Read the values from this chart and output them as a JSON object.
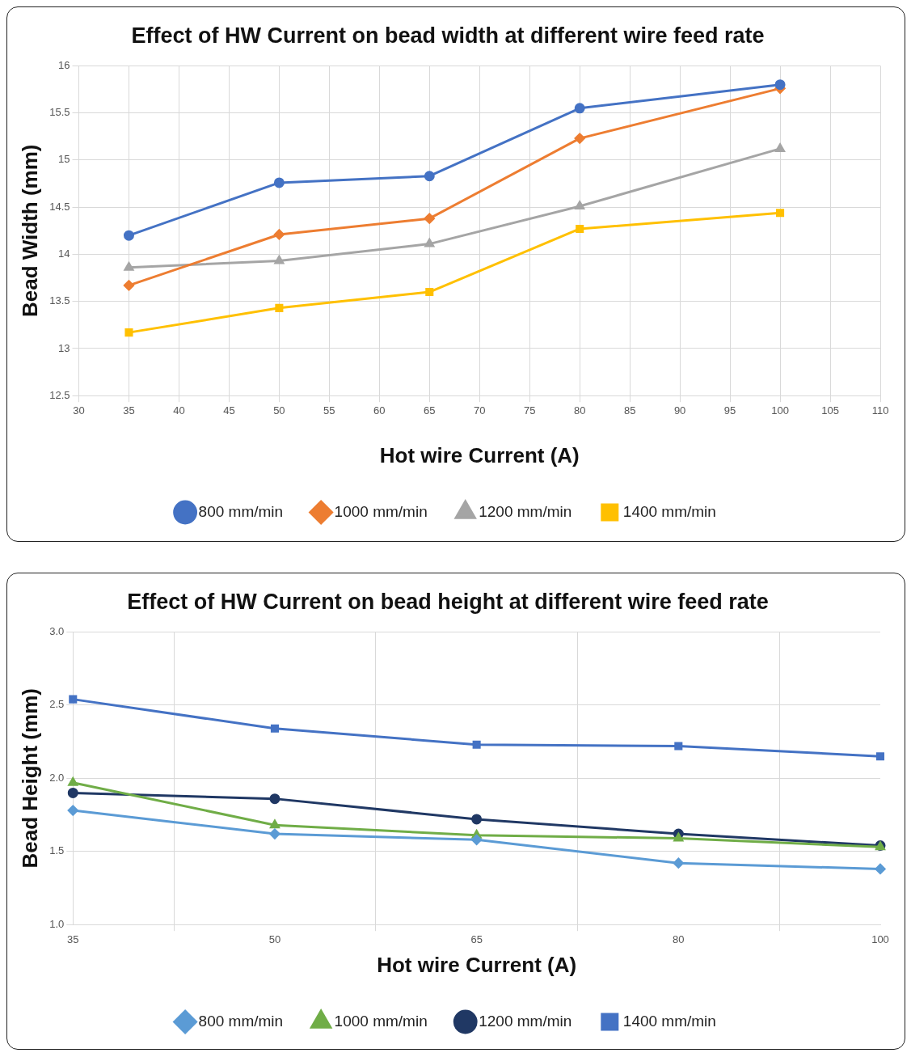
{
  "chart_data": [
    {
      "type": "line",
      "title": "Effect of HW Current on bead width at different wire feed rate",
      "xlabel": "Hot wire Current (A)",
      "ylabel": "Bead Width (mm)",
      "x": [
        35,
        50,
        65,
        80,
        100
      ],
      "xlim": [
        30,
        110
      ],
      "xticks": [
        30,
        35,
        40,
        45,
        50,
        55,
        60,
        65,
        70,
        75,
        80,
        85,
        90,
        95,
        100,
        105,
        110
      ],
      "ylim": [
        12.5,
        16
      ],
      "yticks": [
        12.5,
        13,
        13.5,
        14,
        14.5,
        15,
        15.5,
        16
      ],
      "grid": true,
      "legend": "bottom",
      "series": [
        {
          "name": "800 mm/min",
          "color": "#4472c4",
          "marker": "circle",
          "values": [
            14.2,
            14.76,
            14.83,
            15.55,
            15.8
          ]
        },
        {
          "name": "1000 mm/min",
          "color": "#ed7d31",
          "marker": "diamond",
          "values": [
            13.67,
            14.21,
            14.38,
            15.23,
            15.76
          ]
        },
        {
          "name": "1200 mm/min",
          "color": "#a5a5a5",
          "marker": "triangle",
          "values": [
            13.86,
            13.93,
            14.11,
            14.51,
            15.12
          ]
        },
        {
          "name": "1400 mm/min",
          "color": "#ffc000",
          "marker": "square",
          "values": [
            13.17,
            13.43,
            13.6,
            14.27,
            14.44
          ]
        }
      ]
    },
    {
      "type": "line",
      "title": "Effect of HW Current on bead height at different wire feed rate",
      "xlabel": "Hot wire Current (A)",
      "ylabel": "Bead Height (mm)",
      "categories": [
        "35",
        "50",
        "65",
        "80",
        "100"
      ],
      "ylim": [
        1,
        3
      ],
      "yticks": [
        {
          "value": 1,
          "label": "1.0"
        },
        1.5,
        {
          "value": 2,
          "label": "2.0"
        },
        2.5,
        {
          "value": 3,
          "label": "3.0"
        }
      ],
      "grid": true,
      "legend": "bottom",
      "series": [
        {
          "name": "800 mm/min",
          "color": "#5b9bd5",
          "marker": "diamond",
          "values": [
            1.78,
            1.62,
            1.58,
            1.42,
            1.38
          ]
        },
        {
          "name": "1000 mm/min",
          "color": "#70ad47",
          "marker": "triangle",
          "values": [
            1.97,
            1.68,
            1.61,
            1.59,
            1.53
          ]
        },
        {
          "name": "1200 mm/min",
          "color": "#203864",
          "marker": "circle",
          "values": [
            1.9,
            1.86,
            1.72,
            1.62,
            1.54
          ]
        },
        {
          "name": "1400 mm/min",
          "color": "#4472c4",
          "marker": "square",
          "values": [
            2.54,
            2.34,
            2.23,
            2.22,
            2.15
          ]
        }
      ]
    }
  ]
}
